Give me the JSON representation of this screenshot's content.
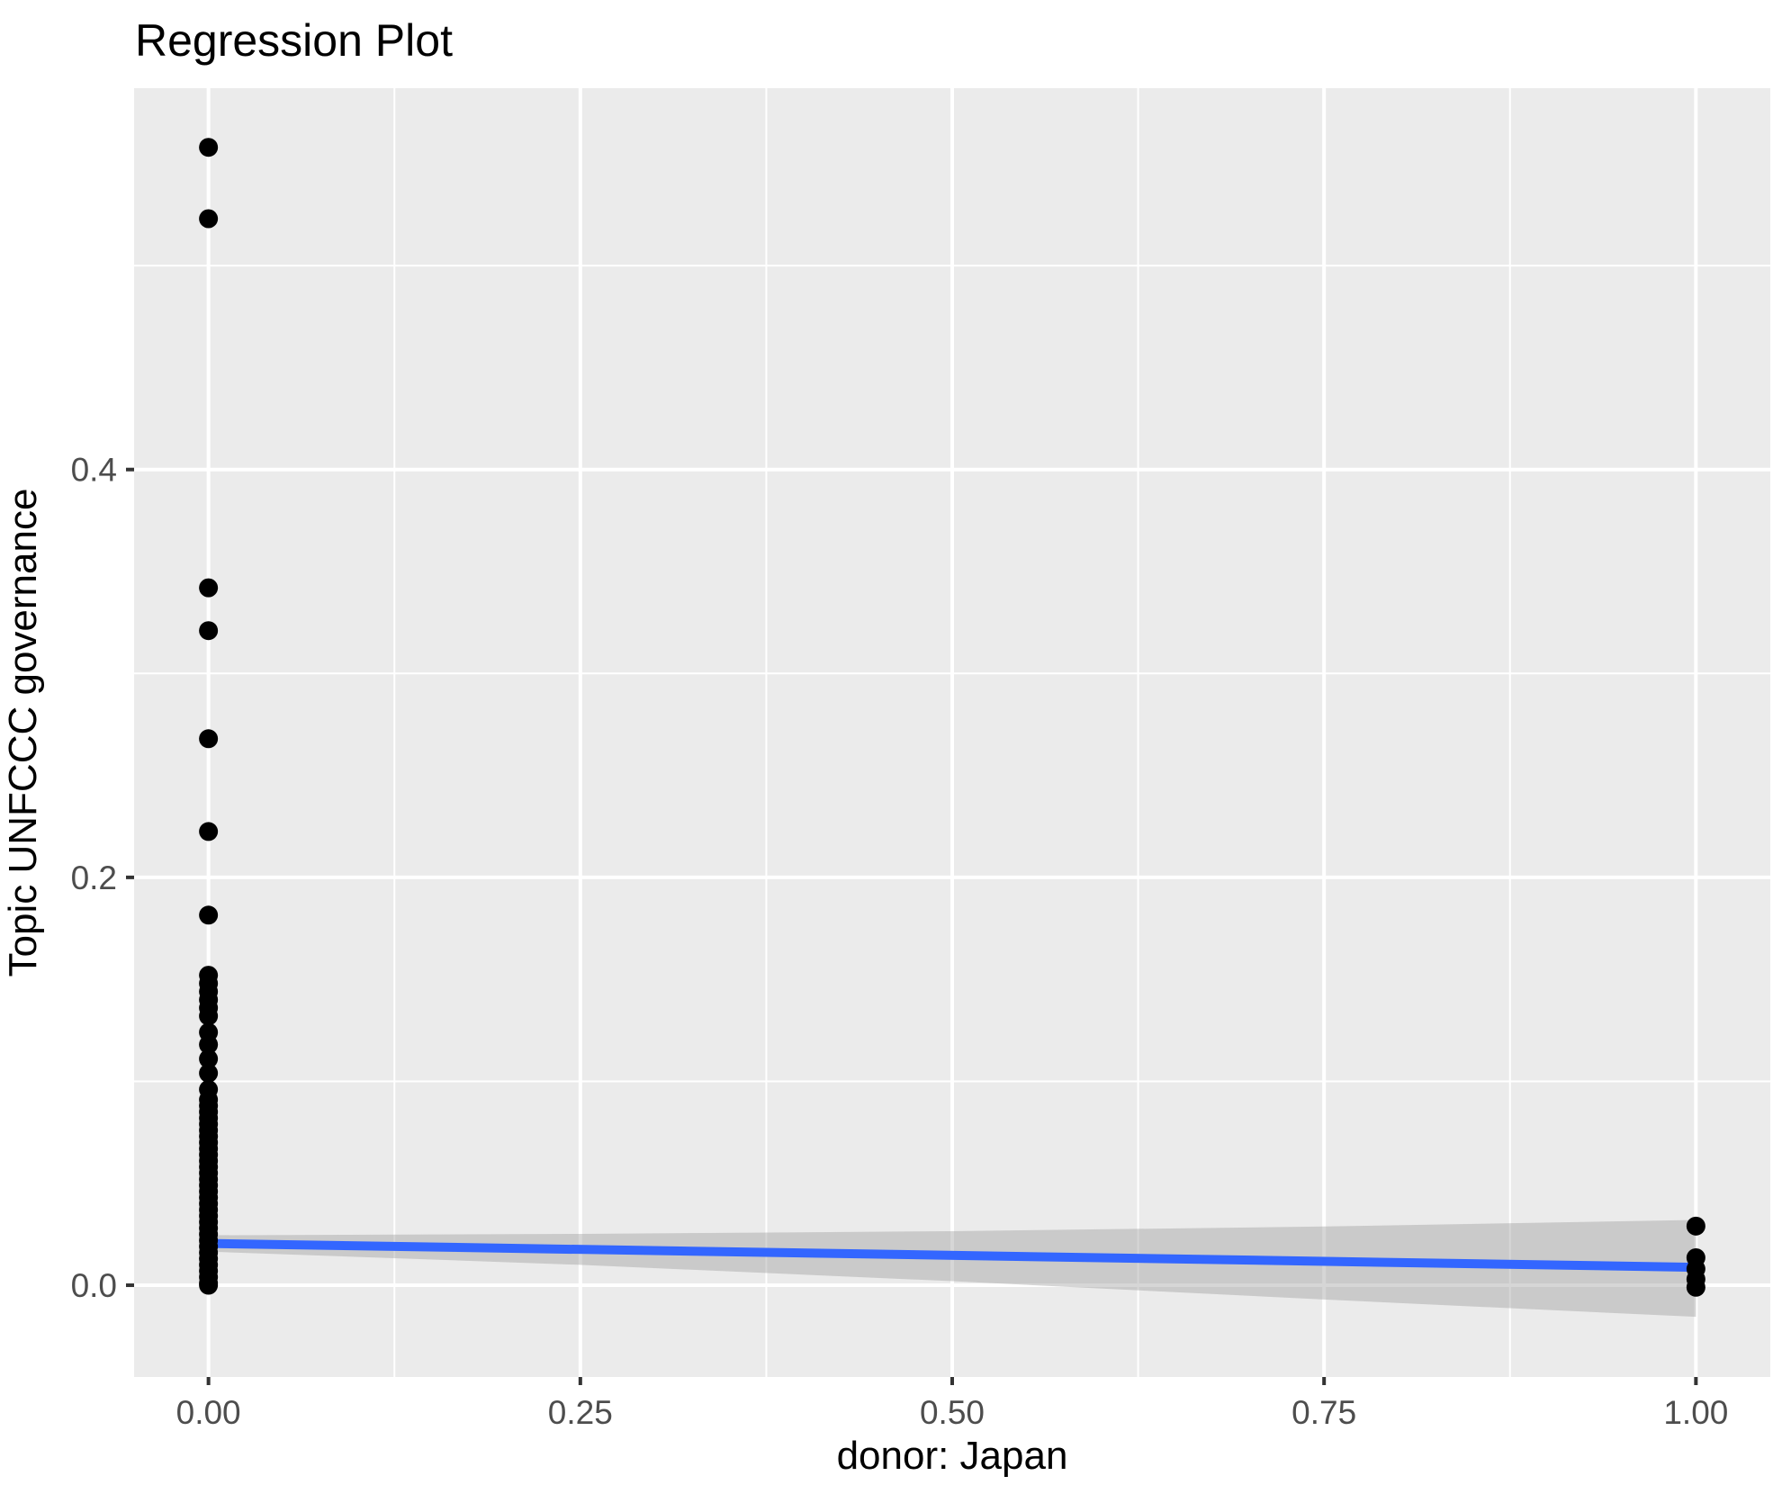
{
  "chart_data": {
    "type": "scatter",
    "title": "Regression Plot",
    "xlabel": "donor: Japan",
    "ylabel": "Topic UNFCCC governance",
    "xlim": [
      -0.05,
      1.05
    ],
    "ylim": [
      -0.045,
      0.587
    ],
    "grid": "on",
    "legend": "none",
    "x_ticks": {
      "values": [
        0,
        0.25,
        0.5,
        0.75,
        1.0
      ],
      "labels": [
        "0.00",
        "0.25",
        "0.50",
        "0.75",
        "1.00"
      ]
    },
    "y_ticks": {
      "values": [
        0,
        0.2,
        0.4
      ],
      "labels": [
        "0.0",
        "0.2",
        "0.4"
      ]
    },
    "x_minor": [
      0.125,
      0.375,
      0.625,
      0.875
    ],
    "y_minor": [
      0.1,
      0.3,
      0.5
    ],
    "colors": {
      "panel_background": "#EBEBEB",
      "gridline": "#FFFFFF",
      "tick_mark": "#333333",
      "tick_label": "#4D4D4D",
      "point": "#000000",
      "fit_line": "#3366FF",
      "confidence_band": "rgba(153,153,153,0.4)"
    },
    "series": [
      {
        "name": "observations",
        "kind": "scatter",
        "points": [
          [
            0,
            0.558
          ],
          [
            0,
            0.523
          ],
          [
            0,
            0.342
          ],
          [
            0,
            0.321
          ],
          [
            0,
            0.268
          ],
          [
            0,
            0.2225
          ],
          [
            0,
            0.1815
          ],
          [
            0,
            0.152
          ],
          [
            0,
            0.148
          ],
          [
            0,
            0.144
          ],
          [
            0,
            0.14
          ],
          [
            0,
            0.136
          ],
          [
            0,
            0.132
          ],
          [
            0,
            0.124
          ],
          [
            0,
            0.118
          ],
          [
            0,
            0.111
          ],
          [
            0,
            0.104
          ],
          [
            0,
            0.096
          ],
          [
            0,
            0.091
          ],
          [
            0,
            0.088
          ],
          [
            0,
            0.085
          ],
          [
            0,
            0.082
          ],
          [
            0,
            0.079
          ],
          [
            0,
            0.076
          ],
          [
            0,
            0.073
          ],
          [
            0,
            0.07
          ],
          [
            0,
            0.067
          ],
          [
            0,
            0.064
          ],
          [
            0,
            0.061
          ],
          [
            0,
            0.058
          ],
          [
            0,
            0.055
          ],
          [
            0,
            0.052
          ],
          [
            0,
            0.049
          ],
          [
            0,
            0.046
          ],
          [
            0,
            0.043
          ],
          [
            0,
            0.04
          ],
          [
            0,
            0.037
          ],
          [
            0,
            0.034
          ],
          [
            0,
            0.031
          ],
          [
            0,
            0.028
          ],
          [
            0,
            0.025
          ],
          [
            0,
            0.022
          ],
          [
            0,
            0.019
          ],
          [
            0,
            0.016
          ],
          [
            0,
            0.013
          ],
          [
            0,
            0.01
          ],
          [
            0,
            0.007
          ],
          [
            0,
            0.004
          ],
          [
            0,
            0.001
          ],
          [
            0,
            0.0
          ],
          [
            1,
            0.029
          ],
          [
            1,
            0.0135
          ],
          [
            1,
            0.008
          ],
          [
            1,
            0.003
          ],
          [
            1,
            -0.001
          ]
        ]
      },
      {
        "name": "regression-fit",
        "kind": "line",
        "x": [
          0,
          1
        ],
        "y": [
          0.0205,
          0.0088
        ]
      },
      {
        "name": "confidence-band",
        "kind": "area",
        "x": [
          0,
          0.25,
          0.5,
          0.75,
          1
        ],
        "upper": [
          0.0245,
          0.0252,
          0.0265,
          0.0288,
          0.032
        ],
        "lower": [
          0.0165,
          0.01,
          0.002,
          -0.007,
          -0.0155
        ]
      }
    ]
  }
}
